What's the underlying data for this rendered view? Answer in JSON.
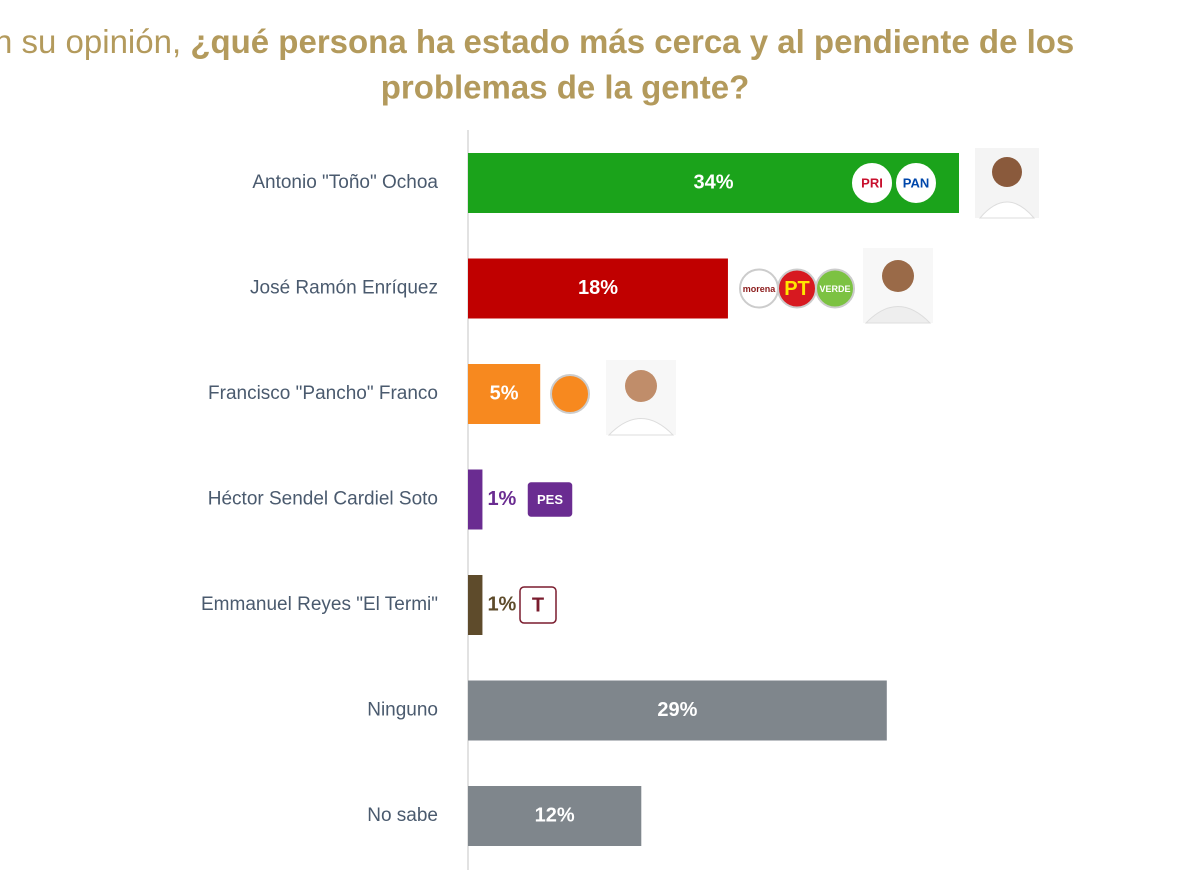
{
  "chart_data": {
    "type": "bar",
    "orientation": "horizontal",
    "title": {
      "light": "n su opinión,",
      "bold": [
        "¿qué persona ha estado más cerca y al pendiente de los",
        "problemas de la gente?"
      ]
    },
    "categories": [
      "Antonio \"Toño\" Ochoa",
      "José Ramón Enríquez",
      "Francisco \"Pancho\" Franco",
      "Héctor Sendel Cardiel Soto",
      "Emmanuel Reyes \"El Termi\"",
      "Ninguno",
      "No sabe"
    ],
    "values": [
      34,
      18,
      5,
      1,
      1,
      29,
      12
    ],
    "value_labels": [
      "34%",
      "18%",
      "5%",
      "1%",
      "1%",
      "29%",
      "12%"
    ],
    "colors": [
      "#1ba31b",
      "#c00000",
      "#f7891f",
      "#6a2c91",
      "#5e4b2b",
      "#7f868c",
      "#7f868c"
    ],
    "xlim": [
      0,
      34
    ],
    "logos": [
      [
        {
          "text": "PRI",
          "color": "#ffffff",
          "ink": "#c8102e"
        },
        {
          "text": "PAN",
          "color": "#ffffff",
          "ink": "#0047ab"
        }
      ],
      [
        {
          "text": "morena",
          "color": "#ffffff",
          "ink": "#8b1a1a"
        },
        {
          "text": "PT",
          "color": "#d71920",
          "ink": "#ffe600"
        },
        {
          "text": "VERDE",
          "color": "#7cc242",
          "ink": "#ffffff"
        }
      ],
      [
        {
          "color": "#f7891f",
          "ink": "#ffffff"
        }
      ],
      [
        {
          "text": "PES",
          "color": "#6a2c91",
          "ink": "#ffffff"
        }
      ],
      [
        {
          "text": "T",
          "color": "#ffffff",
          "ink": "#7a1c2e"
        }
      ],
      [],
      []
    ]
  }
}
